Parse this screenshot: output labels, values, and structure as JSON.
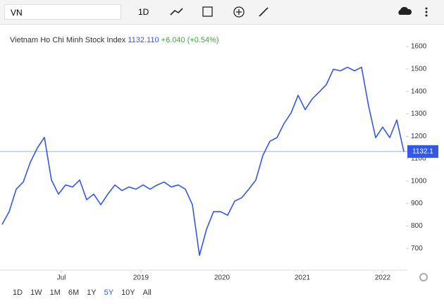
{
  "toolbar": {
    "symbol": "VN",
    "interval": "1D"
  },
  "chart_data": {
    "type": "line",
    "title": "Vietnam Ho Chi Minh Stock Index",
    "price": "1132.110",
    "change": "+6.040 (+0.54%)",
    "series": [
      {
        "name": "VN",
        "color": "#3358e6",
        "values": [
          807,
          864,
          964,
          996,
          1084,
          1148,
          1195,
          1005,
          942,
          983,
          974,
          1005,
          917,
          942,
          895,
          942,
          983,
          958,
          974,
          964,
          983,
          964,
          983,
          996,
          974,
          983,
          964,
          895,
          669,
          785,
          864,
          864,
          848,
          911,
          926,
          964,
          1005,
          1115,
          1178,
          1194,
          1257,
          1304,
          1383,
          1319,
          1367,
          1398,
          1430,
          1499,
          1492,
          1508,
          1492,
          1508,
          1335,
          1194,
          1241,
          1194,
          1273,
          1132.11
        ]
      }
    ],
    "xlim": [
      0,
      57
    ],
    "xticks": [
      {
        "value": 8.4,
        "label": "Jul"
      },
      {
        "value": 19.7,
        "label": "2019"
      },
      {
        "value": 31.2,
        "label": "2020"
      },
      {
        "value": 42.6,
        "label": "2021"
      },
      {
        "value": 54.0,
        "label": "2022"
      }
    ],
    "ylim": [
      603,
      1682
    ],
    "yticks": [
      700,
      800,
      900,
      1000,
      1100,
      1200,
      1300,
      1400,
      1500,
      1600
    ],
    "price_marker": 1132.1
  },
  "ranges": [
    "1D",
    "1W",
    "1M",
    "6M",
    "1Y",
    "5Y",
    "10Y",
    "All"
  ],
  "active_range": 5
}
